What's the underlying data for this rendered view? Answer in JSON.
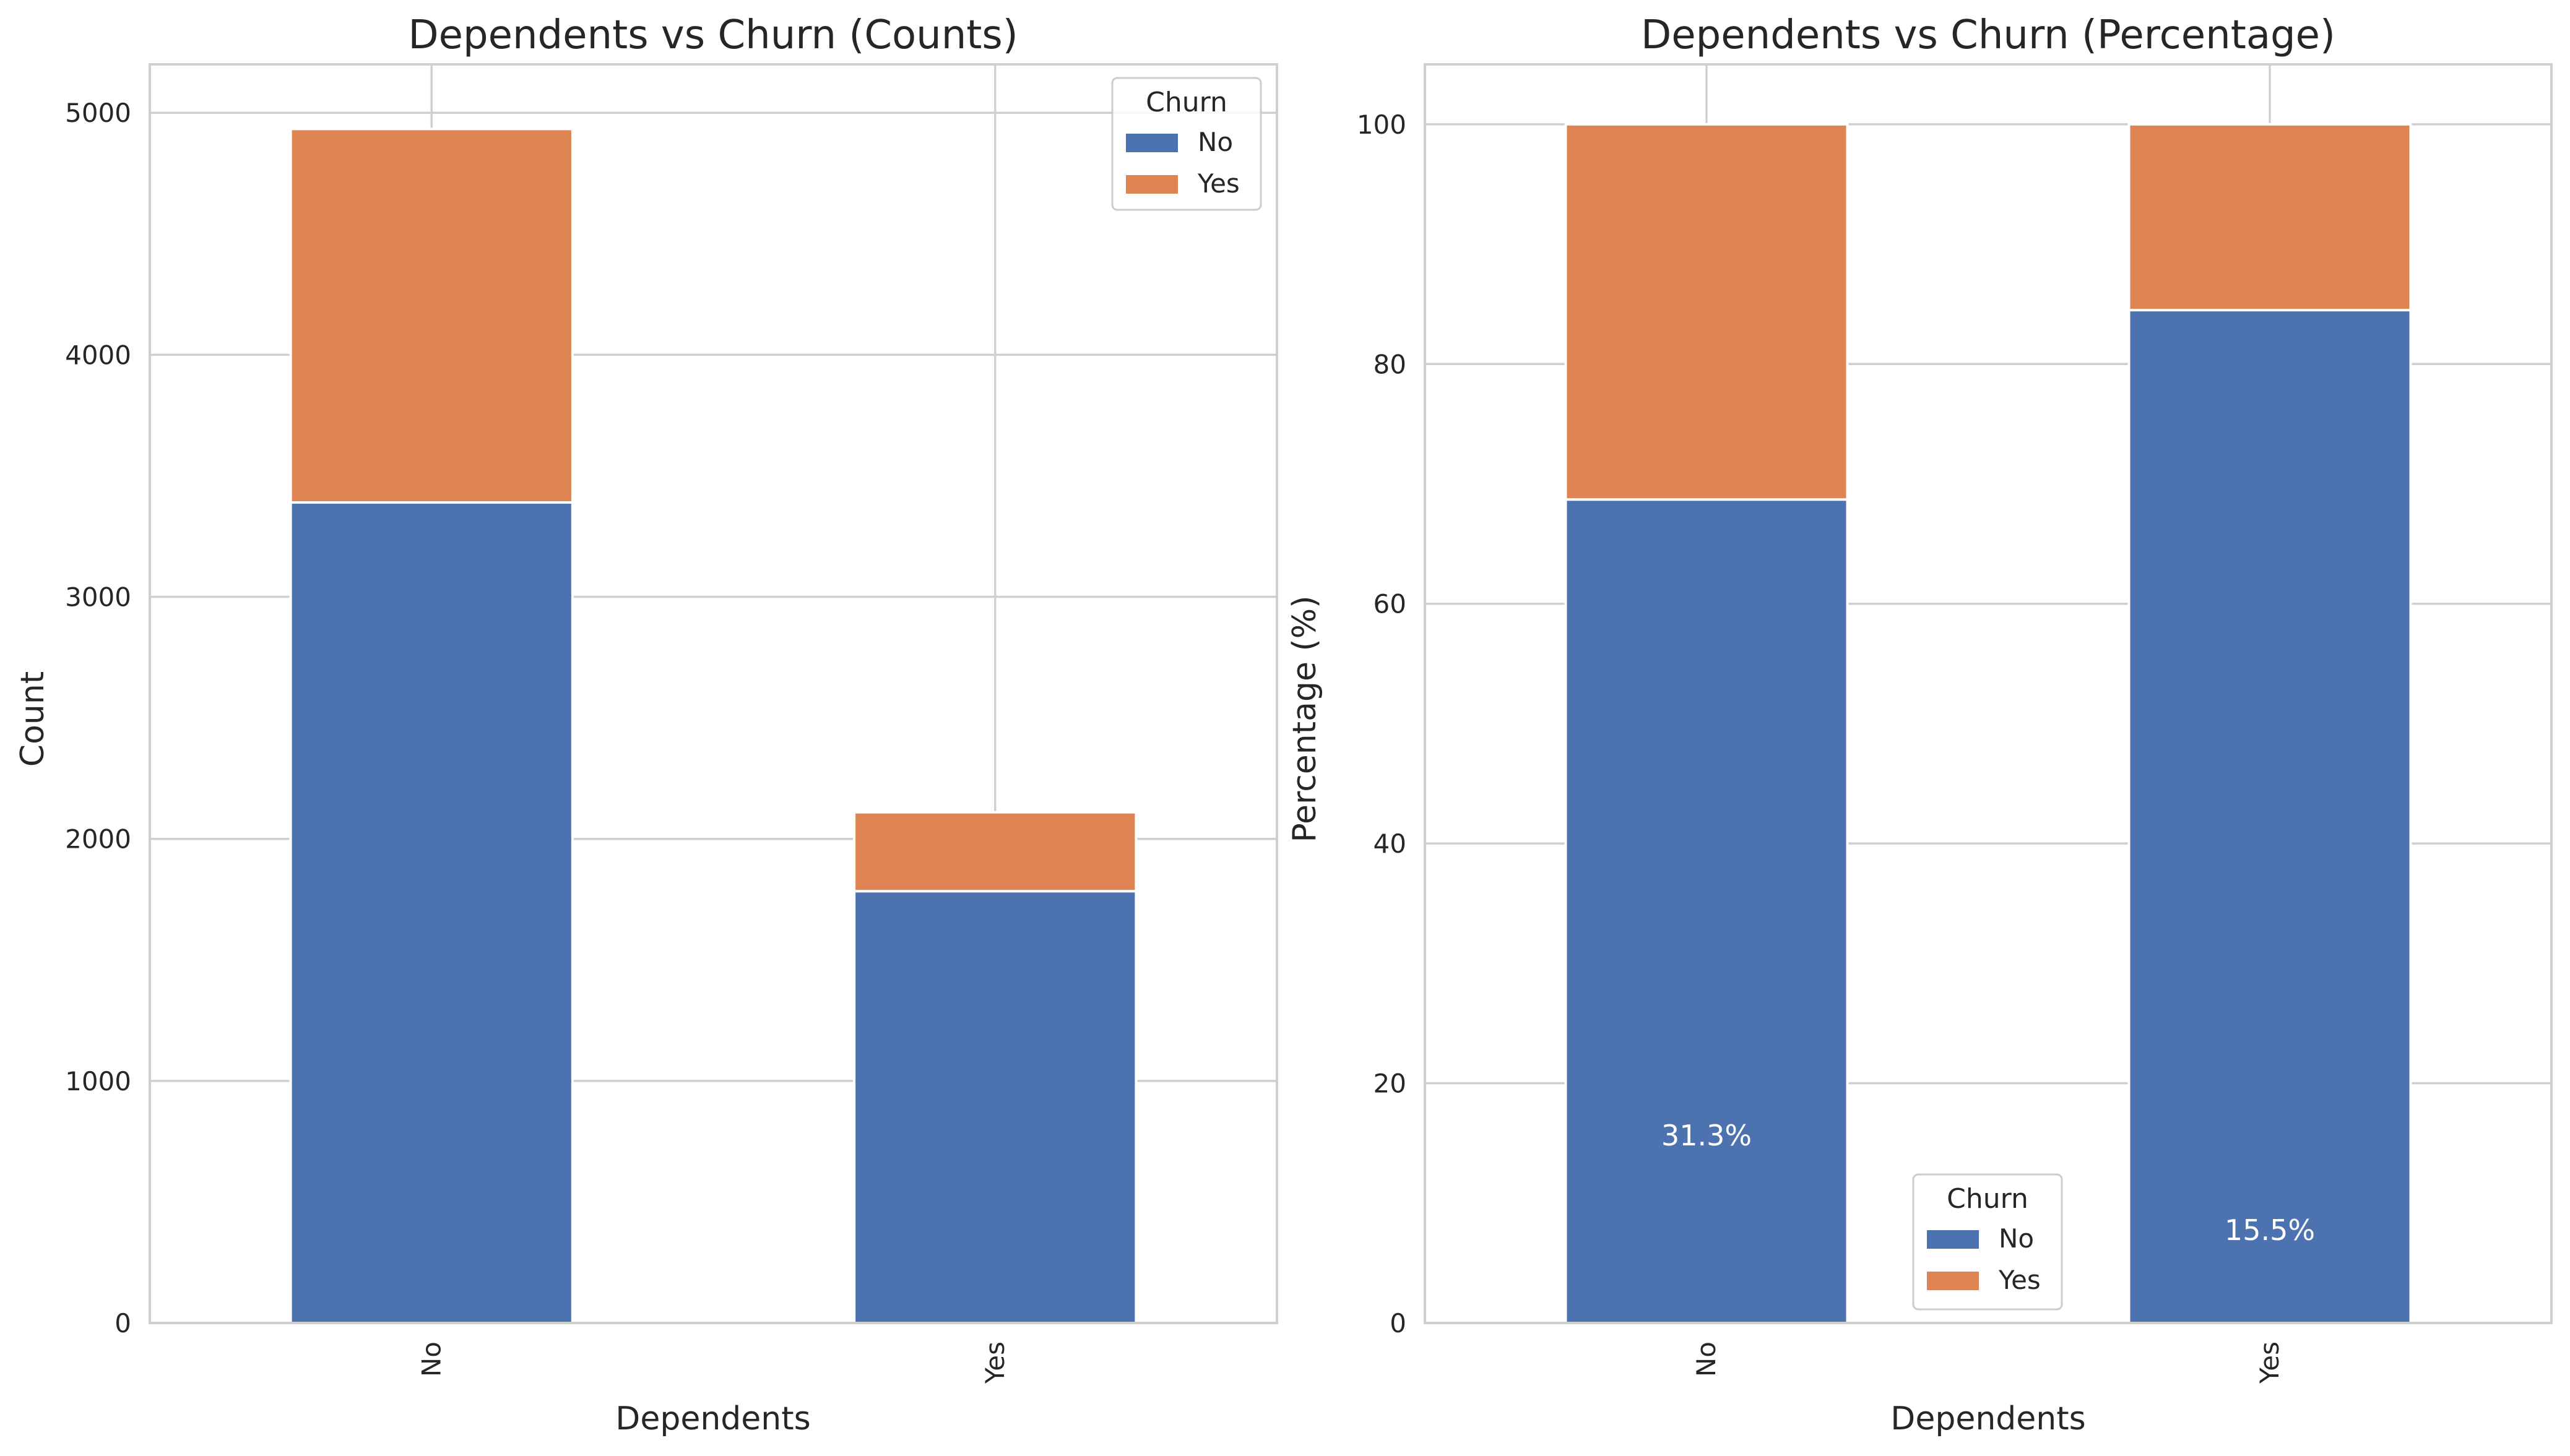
{
  "colors": {
    "no": "#4c72b0",
    "yes": "#dd8452"
  },
  "chart_data": [
    {
      "type": "bar",
      "stacked": true,
      "title": "Dependents vs Churn (Counts)",
      "xlabel": "Dependents",
      "ylabel": "Count",
      "categories": [
        "No",
        "Yes"
      ],
      "ylim": [
        0,
        5200
      ],
      "yticks": [
        0,
        1000,
        2000,
        3000,
        4000,
        5000
      ],
      "ytick_labels": [
        "0",
        "1000",
        "2000",
        "3000",
        "4000",
        "5000"
      ],
      "series": [
        {
          "name": "No",
          "values": [
            3390,
            1784
          ]
        },
        {
          "name": "Yes",
          "values": [
            1543,
            326
          ]
        }
      ],
      "legend": {
        "title": "Churn",
        "entries": [
          "No",
          "Yes"
        ],
        "position": "upper right"
      },
      "grid": true,
      "annotations": []
    },
    {
      "type": "bar",
      "stacked": true,
      "title": "Dependents vs Churn (Percentage)",
      "xlabel": "Dependents",
      "ylabel": "Percentage (%)",
      "categories": [
        "No",
        "Yes"
      ],
      "ylim": [
        0,
        105
      ],
      "yticks": [
        0,
        20,
        40,
        60,
        80,
        100
      ],
      "ytick_labels": [
        "0",
        "20",
        "40",
        "60",
        "80",
        "100"
      ],
      "series": [
        {
          "name": "No",
          "values": [
            68.7,
            84.5
          ]
        },
        {
          "name": "Yes",
          "values": [
            31.3,
            15.5
          ]
        }
      ],
      "legend": {
        "title": "Churn",
        "entries": [
          "No",
          "Yes"
        ],
        "position": "lower center"
      },
      "grid": true,
      "annotations": [
        {
          "category": "No",
          "text": "31.3%",
          "y": 15.65
        },
        {
          "category": "Yes",
          "text": "15.5%",
          "y": 7.75
        }
      ]
    }
  ]
}
